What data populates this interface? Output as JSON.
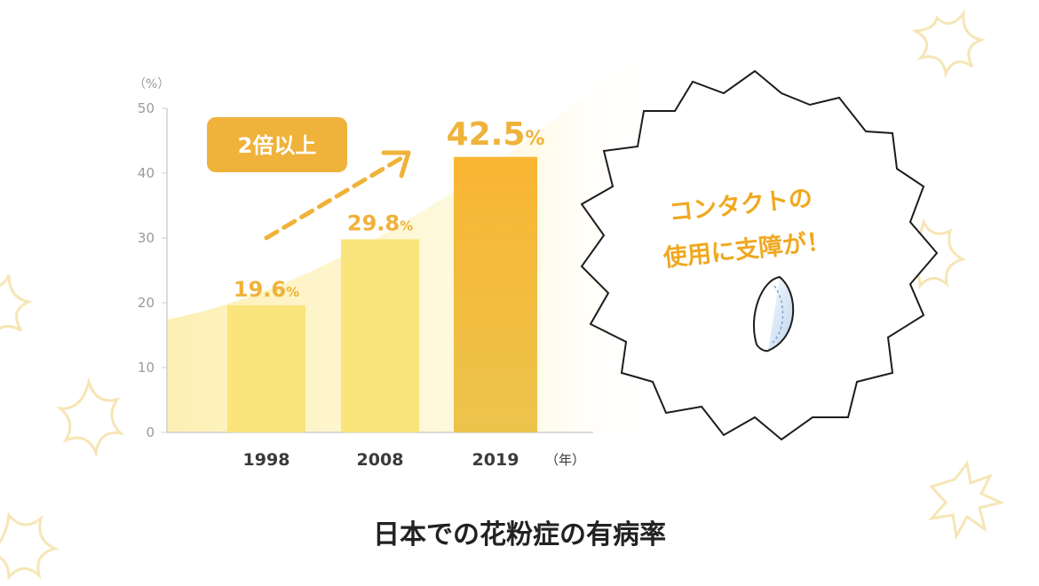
{
  "chart_data": {
    "type": "bar",
    "title": "日本での花粉症の有病率",
    "y_unit": "（%）",
    "x_unit": "（年）",
    "ylim": [
      0,
      50
    ],
    "yticks": [
      "0",
      "10",
      "20",
      "30",
      "40",
      "50"
    ],
    "categories": [
      "1998",
      "2008",
      "2019"
    ],
    "values": [
      19.6,
      29.8,
      42.5
    ],
    "value_labels": [
      {
        "num": "19.6",
        "pct": "%"
      },
      {
        "num": "29.8",
        "pct": "%"
      },
      {
        "num": "42.5",
        "pct": "%"
      }
    ],
    "colors": [
      "#f9e57b",
      "#f9e57b",
      "#f5b733"
    ],
    "annotation": "2倍以上",
    "annotation_color": "#efb23a"
  },
  "callout": {
    "line1": "コンタクトの",
    "line2": "使用に支障が！",
    "text_color": "#f0a81f"
  },
  "icons": [
    "contact-lens-icon",
    "sparkle-decoration-icon"
  ]
}
